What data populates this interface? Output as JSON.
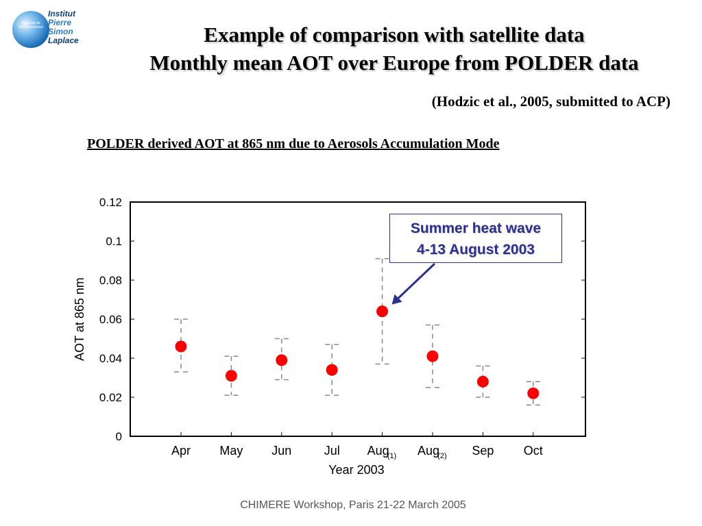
{
  "logo": {
    "line1": "Institut",
    "line2": "Pierre",
    "line3": "Simon",
    "line4": "Laplace",
    "ball_text": "Sciences de l'Environnement"
  },
  "title": {
    "line1": "Example of comparison with satellite data",
    "line2": "Monthly mean AOT over Europe from POLDER data"
  },
  "citation": "(Hodzic et al., 2005, submitted to ACP)",
  "subtitle": "POLDER derived AOT at 865 nm due to Aerosols Accumulation Mode",
  "footer": "CHIMERE Workshop, Paris 21-22 March 2005",
  "callout": {
    "line1": "Summer heat wave",
    "line2": "4-13 August 2003"
  },
  "colors": {
    "marker": "#ff0000",
    "callout": "#2b2f8f",
    "errorbar": "#888888"
  },
  "chart_data": {
    "type": "scatter",
    "xlabel": "Year 2003",
    "ylabel": "AOT at 865 nm",
    "ylim": [
      0,
      0.12
    ],
    "yticks": [
      "0",
      "0.02",
      "0.04",
      "0.06",
      "0.08",
      "0.1",
      "0.12"
    ],
    "categories": [
      "Apr",
      "May",
      "Jun",
      "Jul",
      "Aug",
      "Aug",
      "Sep",
      "Oct"
    ],
    "category_subscripts": [
      "",
      "",
      "",
      "",
      "(1)",
      "(2)",
      "",
      ""
    ],
    "values": [
      0.046,
      0.031,
      0.039,
      0.034,
      0.064,
      0.041,
      0.028,
      0.022
    ],
    "error_low": [
      0.033,
      0.021,
      0.029,
      0.021,
      0.037,
      0.025,
      0.02,
      0.016
    ],
    "error_high": [
      0.06,
      0.041,
      0.05,
      0.047,
      0.091,
      0.057,
      0.036,
      0.028
    ],
    "grid": false,
    "annotation": {
      "text": "Summer heat wave 4-13 August 2003",
      "points_to_index": 4
    }
  }
}
